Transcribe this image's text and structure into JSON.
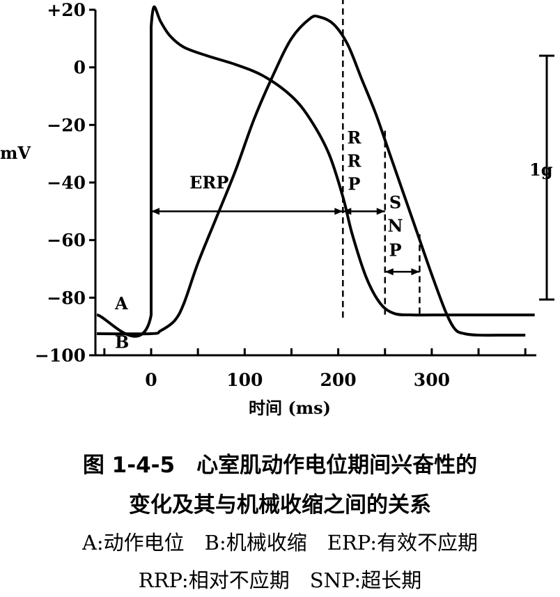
{
  "chart_data": {
    "type": "line",
    "ylabel": "mV",
    "xlabel": "时间 (ms)",
    "ylim": [
      -100,
      20
    ],
    "xlim": [
      -60,
      410
    ],
    "y_ticks": [
      20,
      0,
      -20,
      -40,
      -60,
      -80,
      -100
    ],
    "y_tick_labels": [
      "+20",
      "0",
      "−20",
      "−40",
      "−60",
      "−80",
      "−100"
    ],
    "x_ticks": [
      0,
      100,
      200,
      300
    ],
    "x_tick_labels": [
      "0",
      "100",
      "200",
      "300"
    ],
    "grid": false,
    "series": [
      {
        "name": "A",
        "x": [
          -58,
          0,
          0,
          3,
          10,
          20,
          35,
          60,
          90,
          120,
          150,
          170,
          190,
          205,
          215,
          230,
          245,
          260,
          280,
          300,
          350,
          410
        ],
        "y": [
          -86,
          -86,
          14,
          21,
          16,
          11,
          7,
          4,
          1,
          -3,
          -10,
          -18,
          -30,
          -45,
          -58,
          -73,
          -82,
          -85.5,
          -86,
          -86,
          -86,
          -86
        ]
      },
      {
        "name": "B",
        "x": [
          -58,
          0,
          10,
          25,
          35,
          50,
          70,
          90,
          110,
          130,
          150,
          170,
          180,
          195,
          210,
          225,
          240,
          255,
          270,
          285,
          300,
          315,
          325,
          335,
          350,
          380,
          400
        ],
        "y": [
          -92.5,
          -92.5,
          -91.5,
          -88,
          -82,
          -68,
          -52,
          -36,
          -18,
          -3,
          10,
          17,
          17.5,
          15,
          8,
          -4,
          -16,
          -30,
          -44,
          -58,
          -72,
          -85,
          -91,
          -92.5,
          -93,
          -93,
          -93
        ]
      }
    ],
    "dashed_markers_ms": [
      205,
      250,
      287
    ],
    "intervals": [
      {
        "label": "ERP",
        "start": 0,
        "end": 205,
        "y": -50
      },
      {
        "label": "RRP",
        "start": 205,
        "end": 250,
        "y": -50
      },
      {
        "label": "SNP",
        "start": 250,
        "end": 287,
        "y": -71
      }
    ],
    "interval_labels": {
      "erp": "ERP",
      "rrp": [
        "R",
        "R",
        "P"
      ],
      "snp": [
        "S",
        "N",
        "P"
      ]
    },
    "curve_labels": {
      "a": "A",
      "b": "B"
    },
    "scale_bar": {
      "label": "1g"
    }
  },
  "caption": {
    "title_line1": "图 1-4-5　心室肌动作电位期间兴奋性的",
    "title_line2": "变化及其与机械收缩之间的关系",
    "legend_line1": "A:动作电位　B:机械收缩　ERP:有效不应期",
    "legend_line2": "RRP:相对不应期　SNP:超长期"
  }
}
